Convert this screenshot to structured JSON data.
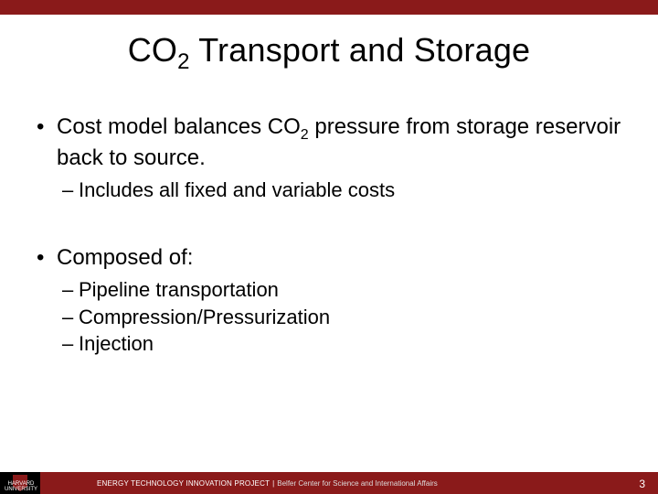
{
  "colors": {
    "accent": "#8a1a1a",
    "text": "#000000",
    "footer_text": "#ffffff",
    "footer_sub": "#dddddd",
    "background": "#ffffff"
  },
  "typography": {
    "title_fontsize": 36,
    "body_fontsize": 24,
    "sub_bullet_fontsize": 22,
    "footer_fontsize": 8,
    "pagenum_fontsize": 12,
    "font_family": "Arial"
  },
  "title": {
    "pre": "CO",
    "sub": "2",
    "post": " Transport and Storage"
  },
  "bullets": [
    {
      "level": 1,
      "parts": {
        "pre": "Cost model balances CO",
        "sub": "2",
        "post": " pressure from storage reservoir back to source."
      }
    },
    {
      "level": 2,
      "text": "Includes all fixed and variable costs"
    },
    {
      "level": 0
    },
    {
      "level": 1,
      "text": "Composed of:"
    },
    {
      "level": 2,
      "text": "Pipeline transportation"
    },
    {
      "level": 2,
      "text": "Compression/Pressurization"
    },
    {
      "level": 2,
      "text": "Injection"
    }
  ],
  "footer": {
    "org_line1": "HARVARD",
    "org_line2": "UNIVERSITY",
    "project": "ENERGY TECHNOLOGY INNOVATION PROJECT",
    "divider": "|",
    "center": "Belfer Center for Science and International Affairs",
    "page_number": "3"
  }
}
